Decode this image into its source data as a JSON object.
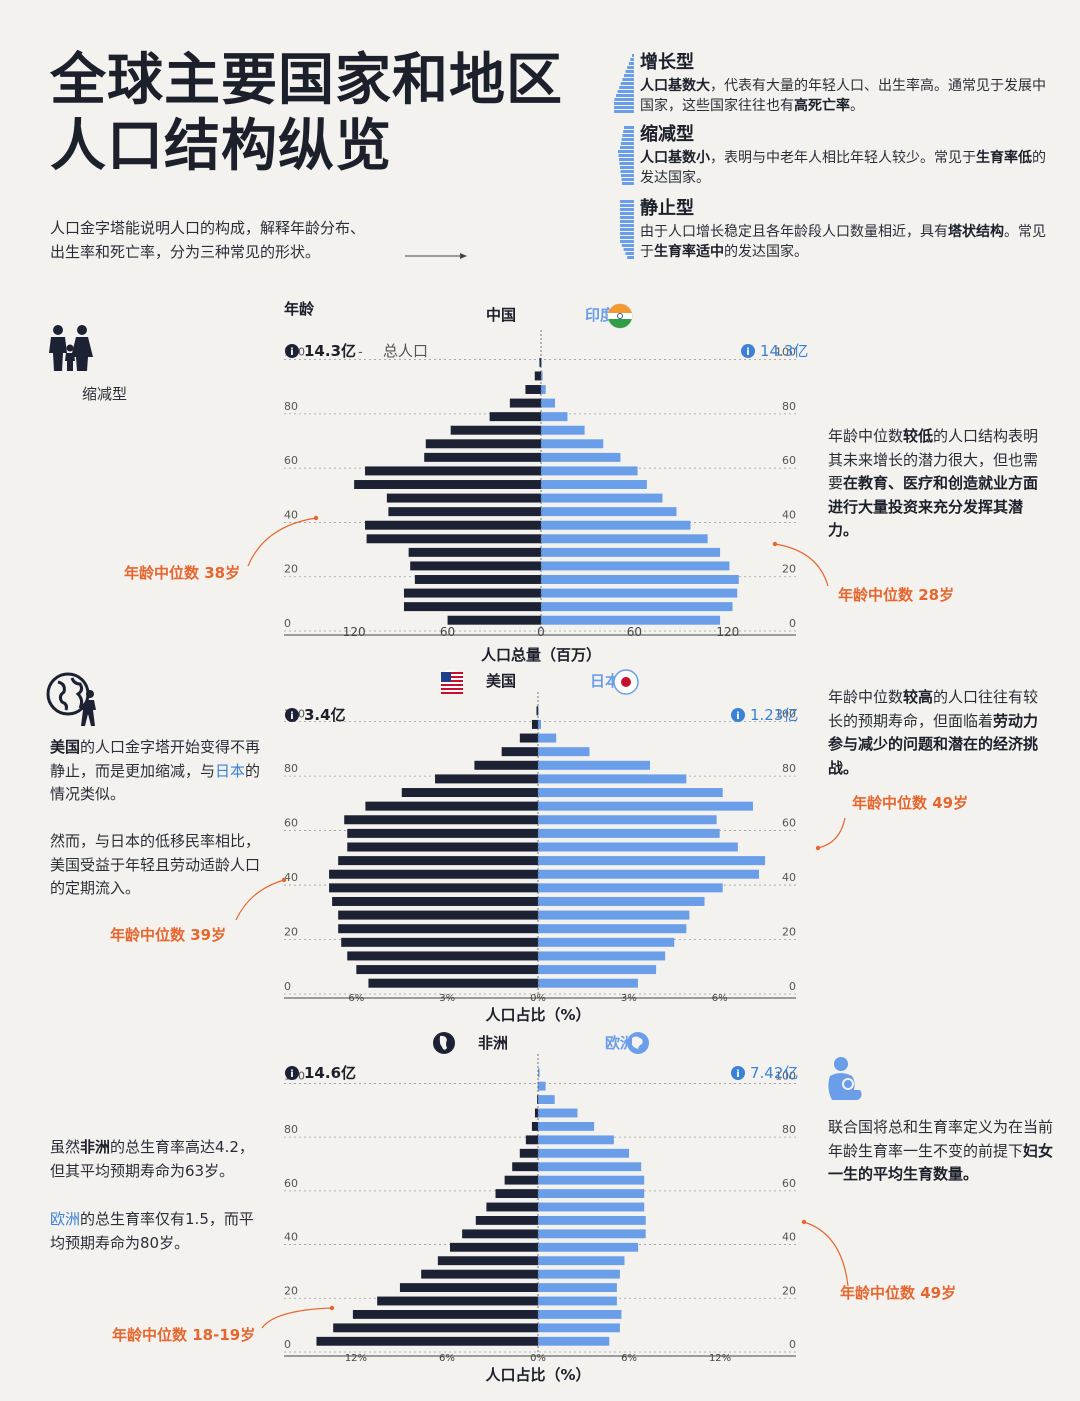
{
  "header": {
    "title_line1": "全球主要国家和地区",
    "title_line2": "人口结构纵览",
    "intro_line1": "人口金字塔能说明人口的构成，解释年龄分布、",
    "intro_line2": "出生率和死亡率，分为三种常见的形状。"
  },
  "types": [
    {
      "name": "增长型",
      "desc_parts": [
        [
          "人口基数大",
          true
        ],
        [
          "，代表有大量的年轻人口、出生率高。通常见于发展中国家，这些国家往往也有",
          false
        ],
        [
          "高死亡率",
          true
        ],
        [
          "。",
          false
        ]
      ]
    },
    {
      "name": "缩减型",
      "desc_parts": [
        [
          "人口基数小",
          true
        ],
        [
          "，表明与中老年人相比年轻人较少。常见于",
          false
        ],
        [
          "生育率低",
          true
        ],
        [
          "的发达国家。",
          false
        ]
      ]
    },
    {
      "name": "静止型",
      "desc_parts": [
        [
          "由于人口增长稳定且各年龄段人口数量相近，具有",
          false
        ],
        [
          "塔状结构",
          true
        ],
        [
          "。常见于",
          false
        ],
        [
          "生育率适中",
          true
        ],
        [
          "的发达国家。",
          false
        ]
      ]
    }
  ],
  "colors": {
    "dark": "#1c2233",
    "blue": "#6b9ee8",
    "orange": "#e8662d",
    "blue_text": "#3b82d6"
  },
  "left_notes": {
    "shrink_label": "缩减型",
    "us_note1": [
      [
        "美国",
        true,
        ""
      ],
      [
        "的人口金字塔开始变得不再静止，而是更加缩减，与",
        false,
        ""
      ],
      [
        "日本",
        false,
        "blue"
      ],
      [
        "的情况类似。",
        false,
        ""
      ]
    ],
    "us_note2": "然而，与日本的低移民率相比，美国受益于年轻且劳动适龄人口的定期流入。",
    "africa_note1": [
      [
        "虽然",
        false,
        ""
      ],
      [
        "非洲",
        true,
        ""
      ],
      [
        "的总生育率高达4.2，但其平均预期寿命为63岁。",
        false,
        ""
      ]
    ],
    "africa_note2": [
      [
        "欧洲",
        false,
        "blue"
      ],
      [
        "的总生育率仅有1.5，而平均预期寿命为80岁。",
        false,
        ""
      ]
    ]
  },
  "right_notes": {
    "india_note": [
      [
        "年龄中位数",
        false,
        ""
      ],
      [
        "较低",
        true,
        "orange"
      ],
      [
        "的人口结构表明其未来增长的潜力很大，但也需要",
        false,
        ""
      ],
      [
        "在教育、医疗和创造就业方面进行大量投资来充分发挥其潜力。",
        true,
        ""
      ]
    ],
    "japan_note": [
      [
        "年龄中位数",
        false,
        ""
      ],
      [
        "较高",
        true,
        "orange"
      ],
      [
        "的人口往往有较长的预期寿命，但面临着",
        false,
        ""
      ],
      [
        "劳动力参与减少的问题和潜在的经济挑战。",
        true,
        ""
      ]
    ],
    "tfr_note": [
      [
        "联合国将总和生育率定义为在当前年龄生育率一生不变的前提下",
        false,
        ""
      ],
      [
        "妇女一生的平均生育数量。",
        true,
        ""
      ]
    ]
  },
  "chart_data": [
    {
      "type": "bar",
      "orientation": "horizontal-diverging",
      "left": {
        "name": "中国",
        "total": "14.3亿",
        "total_label": "总人口",
        "median": "年龄中位数 38岁"
      },
      "right": {
        "name": "印度",
        "total": "14.3亿",
        "median": "年龄中位数 28岁"
      },
      "ylabel": "年龄",
      "xlabel": "人口总量（百万）",
      "age_ticks": [
        "100",
        "80",
        "60",
        "40",
        "20",
        "0"
      ],
      "x_ticks": [
        "120",
        "60",
        "0",
        "60",
        "120"
      ],
      "xmax": 140,
      "age_groups": [
        "0-4",
        "5-9",
        "10-14",
        "15-19",
        "20-24",
        "25-29",
        "30-34",
        "35-39",
        "40-44",
        "45-49",
        "50-54",
        "55-59",
        "60-64",
        "65-69",
        "70-74",
        "75-79",
        "80-84",
        "85-89",
        "90-94",
        "95-99",
        "100+"
      ],
      "left_values": [
        60,
        88,
        88,
        81,
        84,
        85,
        112,
        113,
        98,
        99,
        120,
        113,
        75,
        74,
        58,
        33,
        20,
        10,
        4,
        1,
        0
      ],
      "right_values": [
        115,
        123,
        126,
        127,
        121,
        115,
        107,
        96,
        87,
        78,
        68,
        62,
        51,
        40,
        28,
        17,
        9,
        3,
        1,
        0.5,
        0
      ]
    },
    {
      "type": "bar",
      "orientation": "horizontal-diverging",
      "left": {
        "name": "美国",
        "total": "3.4亿",
        "median": "年龄中位数 39岁"
      },
      "right": {
        "name": "日本",
        "total": "1.23亿",
        "median": "年龄中位数 49岁"
      },
      "xlabel": "人口占比（%）",
      "age_ticks": [
        "100",
        "80",
        "60",
        "40",
        "20",
        "0"
      ],
      "x_ticks": [
        "6%",
        "3%",
        "0%",
        "3%",
        "6%"
      ],
      "xmax": 7.2,
      "age_groups": [
        "0-4",
        "5-9",
        "10-14",
        "15-19",
        "20-24",
        "25-29",
        "30-34",
        "35-39",
        "40-44",
        "45-49",
        "50-54",
        "55-59",
        "60-64",
        "65-69",
        "70-74",
        "75-79",
        "80-84",
        "85-89",
        "90-94",
        "95-99",
        "100+"
      ],
      "left_values": [
        5.6,
        6.0,
        6.3,
        6.5,
        6.6,
        6.6,
        6.8,
        6.9,
        6.9,
        6.6,
        6.3,
        6.3,
        6.4,
        5.7,
        4.5,
        3.4,
        2.1,
        1.2,
        0.6,
        0.2,
        0.05
      ],
      "right_values": [
        3.3,
        3.9,
        4.2,
        4.5,
        4.9,
        5.0,
        5.5,
        6.1,
        7.3,
        7.5,
        6.6,
        6.0,
        5.9,
        7.1,
        6.1,
        4.9,
        3.7,
        1.7,
        0.6,
        0.1,
        0.02
      ]
    },
    {
      "type": "bar",
      "orientation": "horizontal-diverging",
      "left": {
        "name": "非洲",
        "total": "14.6亿",
        "median": "年龄中位数 18-19岁"
      },
      "right": {
        "name": "欧洲",
        "total": "7.42亿",
        "median": "年龄中位数 49岁"
      },
      "xlabel": "人口占比（%）",
      "age_ticks": [
        "100",
        "80",
        "60",
        "40",
        "20",
        "0"
      ],
      "x_ticks": [
        "12%",
        "6%",
        "0%",
        "6%",
        "12%"
      ],
      "xmax": 14.5,
      "age_groups": [
        "0-4",
        "5-9",
        "10-14",
        "15-19",
        "20-24",
        "25-29",
        "30-34",
        "35-39",
        "40-44",
        "45-49",
        "50-54",
        "55-59",
        "60-64",
        "65-69",
        "70-74",
        "75-79",
        "80-84",
        "85-89",
        "90-94",
        "95-99",
        "100+"
      ],
      "left_values": [
        14.6,
        13.5,
        12.2,
        10.6,
        9.1,
        7.7,
        6.6,
        5.8,
        5.0,
        4.1,
        3.4,
        2.8,
        2.2,
        1.7,
        1.2,
        0.8,
        0.4,
        0.2,
        0.06,
        0.01,
        0
      ],
      "right_values": [
        4.7,
        5.4,
        5.5,
        5.2,
        5.2,
        5.4,
        5.7,
        6.6,
        7.1,
        7.1,
        7.0,
        7.0,
        7.0,
        6.8,
        6.0,
        5.0,
        3.7,
        2.6,
        1.1,
        0.5,
        0.1
      ]
    }
  ]
}
